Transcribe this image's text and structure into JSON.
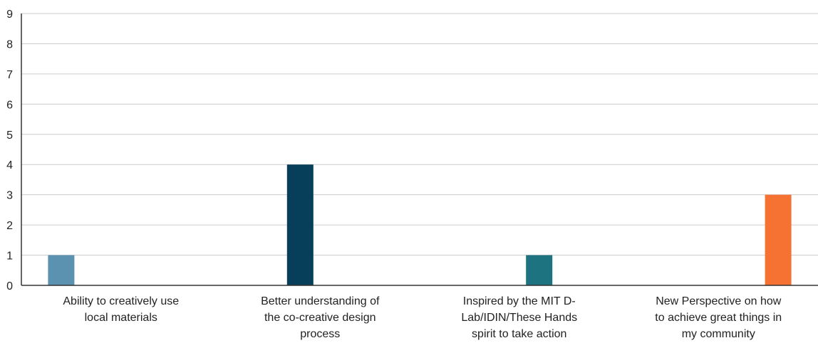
{
  "chart_data": {
    "type": "bar",
    "categories": [
      [
        "Ability to creatively use",
        "local materials"
      ],
      [
        "Better understanding of",
        "the co-creative design",
        "process"
      ],
      [
        "Inspired by the MIT D-",
        "Lab/IDIN/These Hands",
        "spirit to take action"
      ],
      [
        "New Perspective on how",
        "to achieve great things in",
        "my community"
      ]
    ],
    "series": [
      {
        "values": [
          1,
          0,
          0,
          0
        ],
        "color": "#5b92b0"
      },
      {
        "values": [
          0,
          4,
          0,
          0
        ],
        "color": "#073f5a"
      },
      {
        "values": [
          0,
          0,
          1,
          0
        ],
        "color": "#1e7381"
      },
      {
        "values": [
          0,
          0,
          0,
          3
        ],
        "color": "#f57233"
      }
    ],
    "ylim": [
      0,
      9
    ],
    "yticks": [
      0,
      1,
      2,
      3,
      4,
      5,
      6,
      7,
      8,
      9
    ],
    "grid": true,
    "legend": "none",
    "title": "",
    "xlabel": "",
    "ylabel": ""
  }
}
